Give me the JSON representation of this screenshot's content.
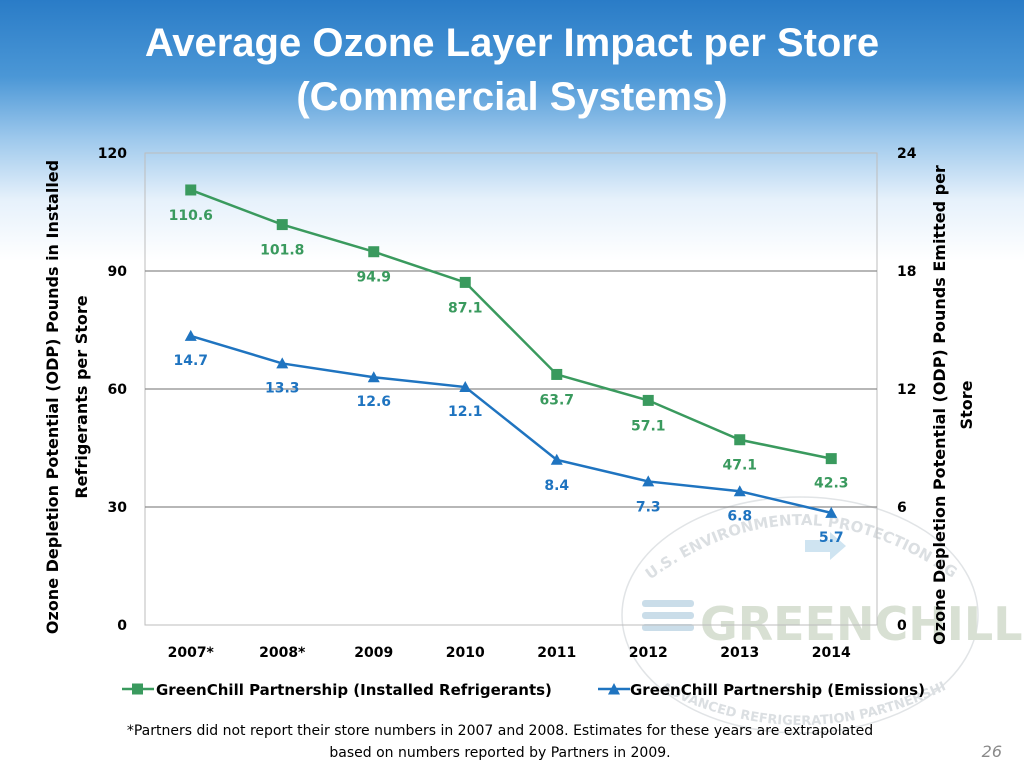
{
  "slide": {
    "title_line1": "Average Ozone Layer Impact per Store",
    "title_line2": "(Commercial Systems)",
    "footnote_line1": "*Partners did not report their store numbers in 2007 and 2008. Estimates for these years are extrapolated",
    "footnote_line2": "based on numbers  reported by Partners in 2009.",
    "page_number": "26",
    "watermark_brand": "GREENCHILL",
    "watermark_arc_text": "U.S. ENVIRONMENTAL PROTECTION AGENCY",
    "watermark_bottom_text": "ADVANCED REFRIGERATION PARTNERSHIP"
  },
  "colors": {
    "green": "#3a9a5e",
    "blue": "#1f74c0",
    "grid": "#8c8c8c"
  },
  "chart_data": {
    "type": "line",
    "categories": [
      "2007*",
      "2008*",
      "2009",
      "2010",
      "2011",
      "2012",
      "2013",
      "2014"
    ],
    "y_left": {
      "title_line1": "Ozone Depletion Potential (ODP) Pounds in Installed",
      "title_line2": "Refrigerants per Store",
      "range": [
        0,
        120
      ],
      "ticks": [
        0,
        30,
        60,
        90,
        120
      ]
    },
    "y_right": {
      "title_line1": "Ozone Depletion Potential (ODP) Pounds Emitted per",
      "title_line2": "Store",
      "range": [
        0,
        24
      ],
      "ticks": [
        0,
        6,
        12,
        18,
        24
      ]
    },
    "grid": true,
    "legend_position": "bottom",
    "series": [
      {
        "name": "GreenChill Partnership (Installed Refrigerants)",
        "axis": "left",
        "marker": "square",
        "color": "#3a9a5e",
        "values": [
          110.6,
          101.8,
          94.9,
          87.1,
          63.7,
          57.1,
          47.1,
          42.3
        ],
        "labels": [
          "110.6",
          "101.8",
          "94.9",
          "87.1",
          "63.7",
          "57.1",
          "47.1",
          "42.3"
        ]
      },
      {
        "name": "GreenChill Partnership (Emissions)",
        "axis": "right",
        "marker": "triangle",
        "color": "#1f74c0",
        "values": [
          14.7,
          13.3,
          12.6,
          12.1,
          8.4,
          7.3,
          6.8,
          5.7
        ],
        "labels": [
          "14.7",
          "13.3",
          "12.6",
          "12.1",
          "8.4",
          "7.3",
          "6.8",
          "5.7"
        ]
      }
    ]
  }
}
